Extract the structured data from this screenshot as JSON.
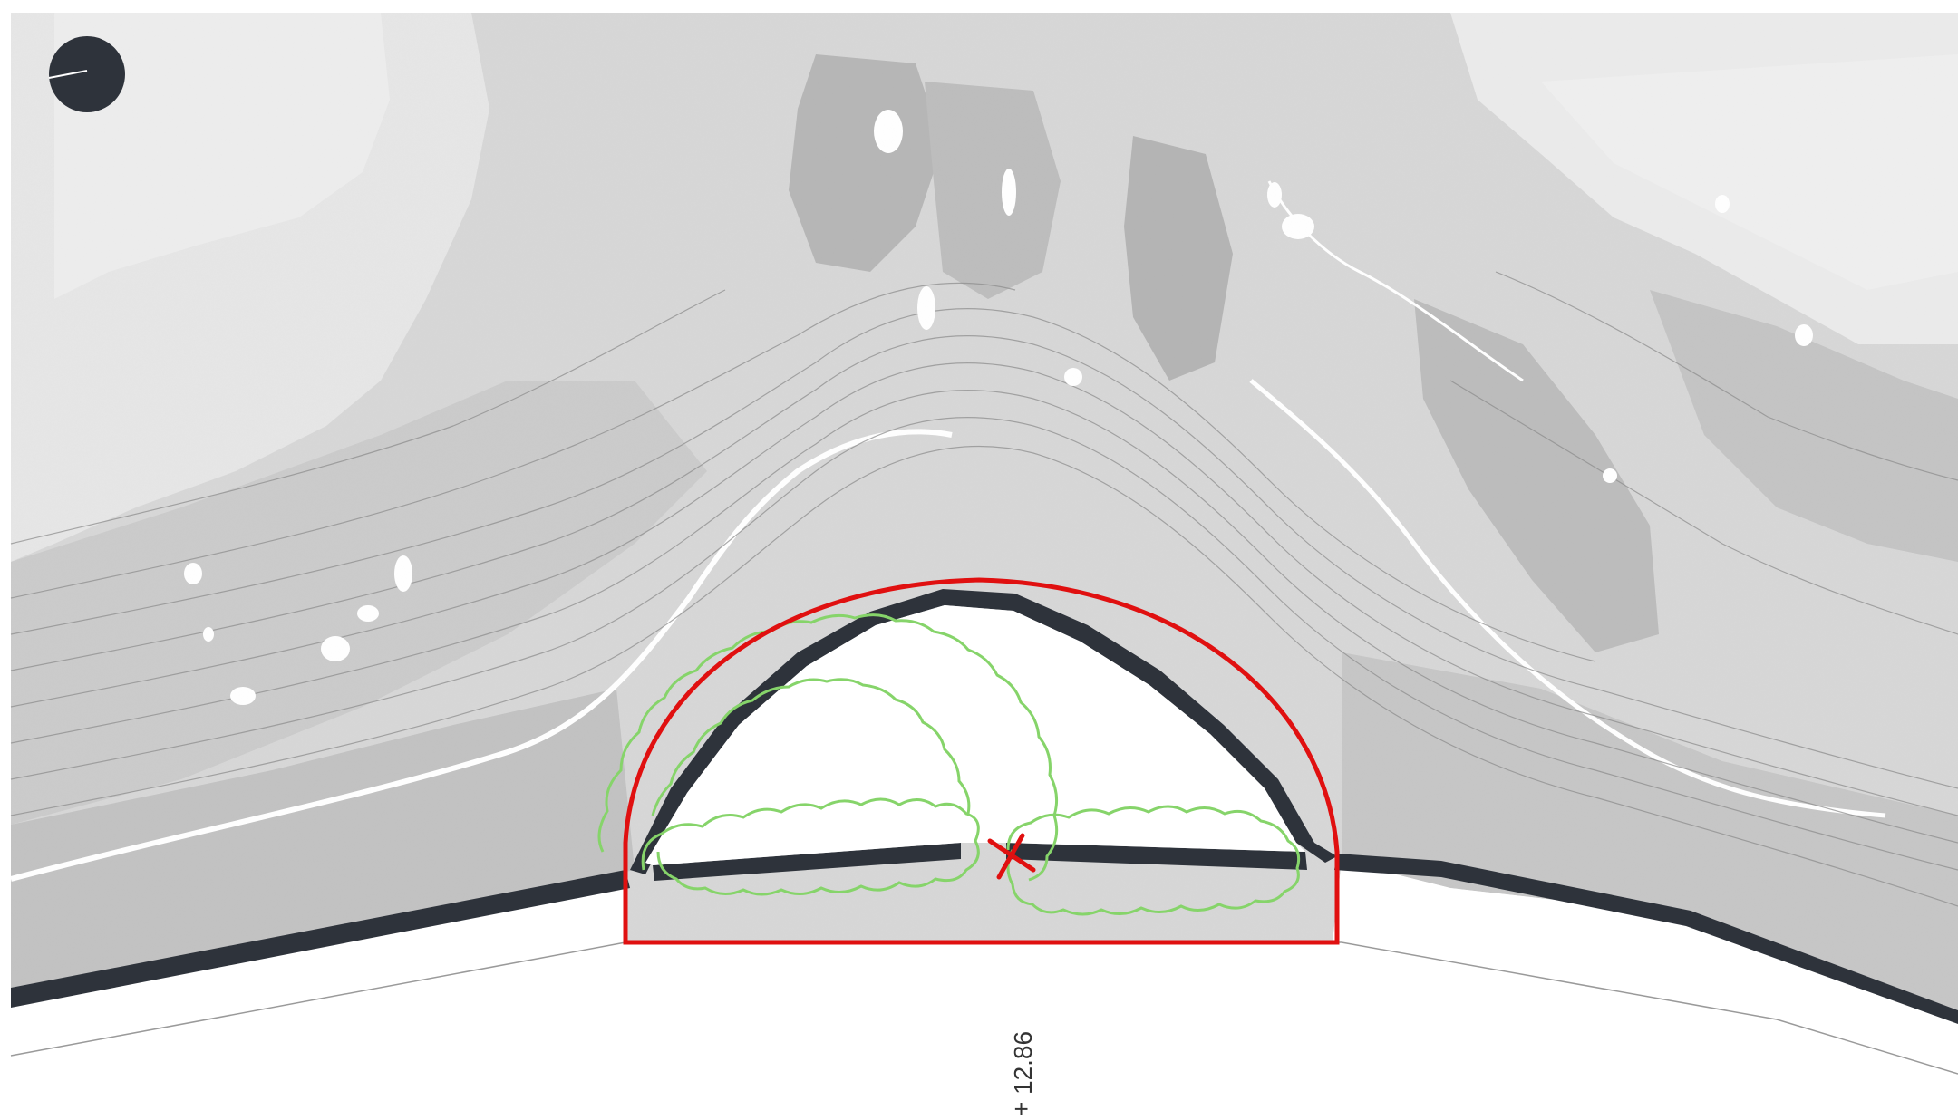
{
  "map": {
    "elevation_label": "12.86",
    "elevation_marker_icon": "spot-height-icon",
    "north_indicator_icon": "north-arrow-icon",
    "center_marker_icon": "red-x-icon",
    "colors": {
      "terrain_light": "#e4e4e4",
      "terrain_mid": "#cfcfcf",
      "terrain_dark": "#a9a9a9",
      "contour_line": "#7f7f7f",
      "wall_dark": "#2e333b",
      "boundary_red": "#e01010",
      "vegetation_green": "#86d46a",
      "road_line": "#9a9a9a"
    }
  }
}
